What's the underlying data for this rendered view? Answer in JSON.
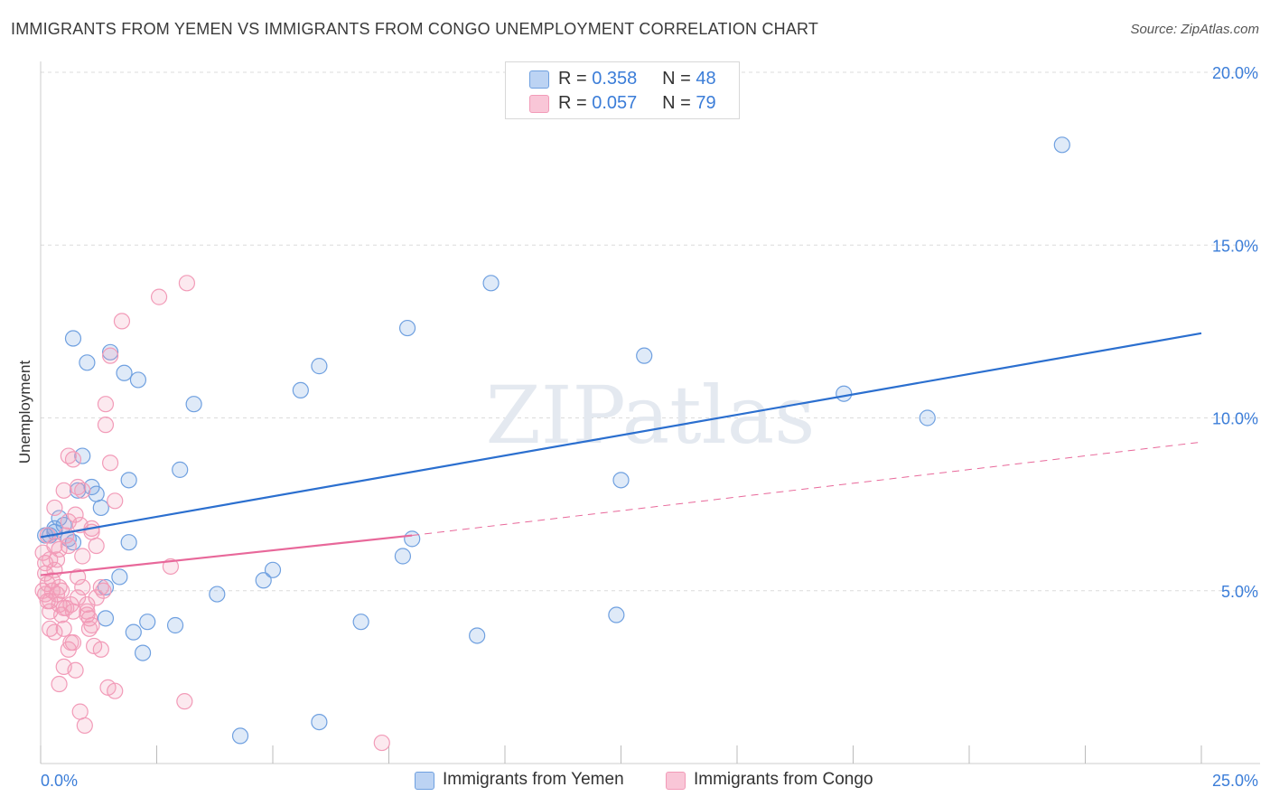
{
  "title": "IMMIGRANTS FROM YEMEN VS IMMIGRANTS FROM CONGO UNEMPLOYMENT CORRELATION CHART",
  "source": "Source: ZipAtlas.com",
  "watermark": "ZIPatlas",
  "legend": {
    "r_label": "R =",
    "n_label": "N =",
    "rows": [
      {
        "r": "0.358",
        "n": "48"
      },
      {
        "r": "0.057",
        "n": "79"
      }
    ]
  },
  "chart_data": {
    "type": "scatter",
    "ylabel": "Unemployment",
    "xlim": [
      0,
      25
    ],
    "ylim": [
      0,
      20
    ],
    "x_tick_labels": [
      "0.0%",
      "25.0%"
    ],
    "y_ticks": [
      5,
      10,
      15,
      20
    ],
    "y_tick_labels": [
      "5.0%",
      "10.0%",
      "15.0%",
      "20.0%"
    ],
    "colors": {
      "yemen": "#6fa0e0",
      "congo": "#f29bb8",
      "yemen_line": "#2b6fcf",
      "congo_line": "#e8689a"
    },
    "series": [
      {
        "name": "Immigrants from Yemen",
        "points": [
          [
            0.1,
            6.6
          ],
          [
            0.3,
            6.7
          ],
          [
            0.4,
            7.1
          ],
          [
            0.5,
            6.9
          ],
          [
            0.6,
            6.5
          ],
          [
            0.2,
            6.6
          ],
          [
            0.7,
            6.4
          ],
          [
            0.8,
            7.9
          ],
          [
            0.9,
            8.9
          ],
          [
            1.1,
            8.0
          ],
          [
            1.2,
            7.8
          ],
          [
            1.3,
            7.4
          ],
          [
            0.7,
            12.3
          ],
          [
            1.0,
            11.6
          ],
          [
            1.5,
            11.9
          ],
          [
            1.8,
            11.3
          ],
          [
            2.1,
            11.1
          ],
          [
            1.9,
            8.2
          ],
          [
            1.9,
            6.4
          ],
          [
            1.7,
            5.4
          ],
          [
            1.4,
            5.1
          ],
          [
            1.4,
            4.2
          ],
          [
            2.0,
            3.8
          ],
          [
            2.3,
            4.1
          ],
          [
            2.2,
            3.2
          ],
          [
            2.9,
            4.0
          ],
          [
            3.0,
            8.5
          ],
          [
            3.3,
            10.4
          ],
          [
            3.8,
            4.9
          ],
          [
            4.3,
            0.8
          ],
          [
            4.8,
            5.3
          ],
          [
            5.0,
            5.6
          ],
          [
            5.6,
            10.8
          ],
          [
            6.0,
            11.5
          ],
          [
            6.0,
            1.2
          ],
          [
            6.9,
            4.1
          ],
          [
            7.8,
            6.0
          ],
          [
            7.9,
            12.6
          ],
          [
            8.0,
            6.5
          ],
          [
            9.4,
            3.7
          ],
          [
            9.7,
            13.9
          ],
          [
            12.4,
            4.3
          ],
          [
            12.5,
            8.2
          ],
          [
            13.0,
            11.8
          ],
          [
            17.3,
            10.7
          ],
          [
            19.1,
            10.0
          ],
          [
            22.0,
            17.9
          ],
          [
            0.3,
            6.8
          ]
        ]
      },
      {
        "name": "Immigrants from Congo",
        "points": [
          [
            0.05,
            6.1
          ],
          [
            0.1,
            5.8
          ],
          [
            0.1,
            5.5
          ],
          [
            0.15,
            5.2
          ],
          [
            0.1,
            4.9
          ],
          [
            0.2,
            4.7
          ],
          [
            0.2,
            4.4
          ],
          [
            0.25,
            5.0
          ],
          [
            0.3,
            5.6
          ],
          [
            0.3,
            6.3
          ],
          [
            0.35,
            5.9
          ],
          [
            0.4,
            5.1
          ],
          [
            0.4,
            4.6
          ],
          [
            0.45,
            4.3
          ],
          [
            0.5,
            4.5
          ],
          [
            0.5,
            3.9
          ],
          [
            0.55,
            6.6
          ],
          [
            0.6,
            7.0
          ],
          [
            0.6,
            6.3
          ],
          [
            0.65,
            4.6
          ],
          [
            0.7,
            4.4
          ],
          [
            0.7,
            3.5
          ],
          [
            0.75,
            2.7
          ],
          [
            0.8,
            4.8
          ],
          [
            0.8,
            5.4
          ],
          [
            0.85,
            6.9
          ],
          [
            0.9,
            7.9
          ],
          [
            0.9,
            6.0
          ],
          [
            1.0,
            4.6
          ],
          [
            1.0,
            4.3
          ],
          [
            1.0,
            4.4
          ],
          [
            1.05,
            4.2
          ],
          [
            1.05,
            3.9
          ],
          [
            1.1,
            6.7
          ],
          [
            1.1,
            6.8
          ],
          [
            1.2,
            4.8
          ],
          [
            1.3,
            5.1
          ],
          [
            1.3,
            3.3
          ],
          [
            1.4,
            10.4
          ],
          [
            1.4,
            9.8
          ],
          [
            1.5,
            8.7
          ],
          [
            1.5,
            11.8
          ],
          [
            1.6,
            7.6
          ],
          [
            1.6,
            2.1
          ],
          [
            1.75,
            12.8
          ],
          [
            2.55,
            13.5
          ],
          [
            2.8,
            5.7
          ],
          [
            3.15,
            13.9
          ],
          [
            3.1,
            1.8
          ],
          [
            7.35,
            0.6
          ],
          [
            0.3,
            7.4
          ],
          [
            0.4,
            2.3
          ],
          [
            0.5,
            2.8
          ],
          [
            0.6,
            8.9
          ],
          [
            0.7,
            8.8
          ],
          [
            0.8,
            8.0
          ],
          [
            0.2,
            3.9
          ],
          [
            0.3,
            3.8
          ],
          [
            0.45,
            5.0
          ],
          [
            0.55,
            4.5
          ],
          [
            0.65,
            3.5
          ],
          [
            0.85,
            1.5
          ],
          [
            0.95,
            1.1
          ],
          [
            1.15,
            3.4
          ],
          [
            1.2,
            6.3
          ],
          [
            0.15,
            6.6
          ],
          [
            0.25,
            5.3
          ],
          [
            0.35,
            4.9
          ],
          [
            0.05,
            5.0
          ],
          [
            0.2,
            5.9
          ],
          [
            0.5,
            7.9
          ],
          [
            0.75,
            7.2
          ],
          [
            0.9,
            5.1
          ],
          [
            1.1,
            4.0
          ],
          [
            1.35,
            5.0
          ],
          [
            0.4,
            6.2
          ],
          [
            0.6,
            3.3
          ],
          [
            0.15,
            4.7
          ],
          [
            1.45,
            2.2
          ]
        ]
      }
    ],
    "trend_lines": [
      {
        "series": "Immigrants from Yemen",
        "x": [
          0,
          25
        ],
        "y": [
          6.55,
          12.45
        ],
        "style": "solid"
      },
      {
        "series": "Immigrants from Congo",
        "x": [
          0,
          8.0
        ],
        "y": [
          5.45,
          6.6
        ],
        "style": "solid"
      },
      {
        "series": "Immigrants from Congo",
        "x": [
          8.0,
          25
        ],
        "y": [
          6.6,
          9.3
        ],
        "style": "dashed"
      }
    ]
  }
}
